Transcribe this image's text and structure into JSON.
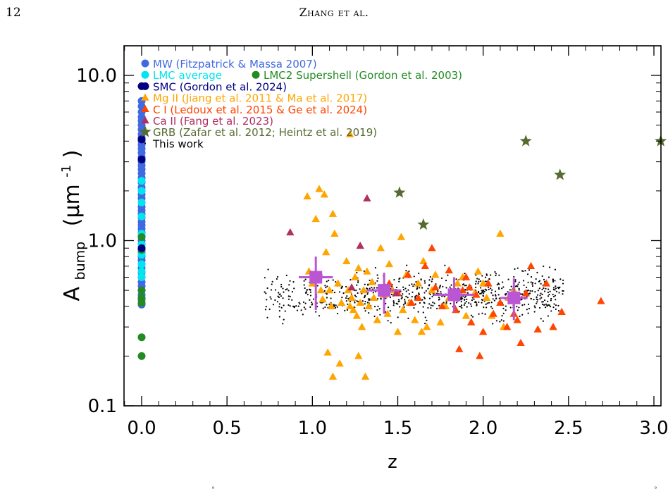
{
  "page": {
    "page_number": "12",
    "running_head": "Zhang et al.",
    "stray_marks": [
      "°",
      "°"
    ]
  },
  "chart_data": {
    "type": "scatter",
    "title": "",
    "xlabel": "z",
    "ylabel": "A",
    "ylabel_sub": "bump",
    "ylabel_units_open": "(μm",
    "ylabel_units_sup": "-1",
    "ylabel_units_close": ")",
    "xlim": [
      -0.1,
      3.05
    ],
    "ylim": [
      0.1,
      15
    ],
    "yscale": "log",
    "grid": false,
    "legend_placement": "top-left",
    "xticks": [
      {
        "value": 0.0,
        "label": "0.0"
      },
      {
        "value": 0.5,
        "label": "0.5"
      },
      {
        "value": 1.0,
        "label": "1.0"
      },
      {
        "value": 1.5,
        "label": "1.5"
      },
      {
        "value": 2.0,
        "label": "2.0"
      },
      {
        "value": 2.5,
        "label": "2.5"
      },
      {
        "value": 3.0,
        "label": "3.0"
      }
    ],
    "yticks": [
      {
        "value": 0.1,
        "label": "0.1"
      },
      {
        "value": 1.0,
        "label": "1.0"
      },
      {
        "value": 10.0,
        "label": "10.0"
      }
    ],
    "legend": [
      {
        "marker": "circle",
        "color": "#4169E1",
        "text": "MW (Fitzpatrick & Massa 2007)"
      },
      {
        "marker": "circle",
        "color": "#00E5EE",
        "text": "LMC average"
      },
      {
        "marker": "circle",
        "color": "#228B22",
        "text": "LMC2 Supershell (Gordon et al. 2003)",
        "inline_with_previous": true
      },
      {
        "marker": "circle",
        "color": "#000080",
        "text": "SMC (Gordon et al. 2024)"
      },
      {
        "marker": "triangle",
        "color": "#FFA500",
        "text": "Mg II (Jiang et al. 2011 & Ma et al. 2017)"
      },
      {
        "marker": "triangle",
        "color": "#FF4500",
        "text": "C I (Ledoux et al. 2015 & Ge et al. 2024)"
      },
      {
        "marker": "triangle",
        "color": "#B03060",
        "text": "Ca II (Fang et al. 2023)"
      },
      {
        "marker": "star",
        "color": "#556B2F",
        "text": "GRB (Zafar et al. 2012; Heintz et al. 2019)"
      },
      {
        "marker": "dot",
        "color": "#000000",
        "text": "This work"
      }
    ],
    "series": [
      {
        "name": "MW (Fitzpatrick & Massa 2007)",
        "marker": "circle",
        "color": "#4169E1",
        "x": [
          0,
          0,
          0,
          0,
          0,
          0,
          0,
          0,
          0,
          0,
          0,
          0,
          0,
          0,
          0,
          0,
          0,
          0,
          0,
          0,
          0,
          0,
          0,
          0,
          0,
          0,
          0,
          0,
          0,
          0,
          0,
          0,
          0,
          0,
          0,
          0,
          0,
          0,
          0,
          0,
          0,
          0,
          0,
          0,
          0,
          0,
          0,
          0,
          0,
          0
        ],
        "y": [
          7.0,
          6.5,
          6.0,
          5.6,
          5.3,
          5.0,
          4.7,
          4.4,
          4.2,
          4.0,
          3.8,
          3.6,
          3.4,
          3.2,
          3.0,
          2.85,
          2.7,
          2.55,
          2.4,
          2.25,
          2.1,
          2.0,
          1.9,
          1.8,
          1.7,
          1.6,
          1.52,
          1.45,
          1.38,
          1.3,
          1.24,
          1.18,
          1.12,
          1.06,
          1.0,
          0.95,
          0.9,
          0.85,
          0.8,
          0.76,
          0.72,
          0.68,
          0.64,
          0.6,
          0.56,
          0.53,
          0.5,
          0.47,
          0.44,
          0.41
        ]
      },
      {
        "name": "LMC average",
        "marker": "circle",
        "color": "#00E5EE",
        "x": [
          0,
          0,
          0,
          0,
          0,
          0,
          0,
          0,
          0,
          0
        ],
        "y": [
          2.3,
          2.0,
          1.7,
          1.4,
          1.1,
          0.95,
          0.82,
          0.72,
          0.65,
          0.6
        ]
      },
      {
        "name": "LMC2 Supershell (Gordon et al. 2003)",
        "marker": "circle",
        "color": "#228B22",
        "x": [
          0,
          0,
          0,
          0,
          0,
          0,
          0
        ],
        "y": [
          1.05,
          0.5,
          0.45,
          0.42,
          0.26,
          0.2,
          0.88
        ]
      },
      {
        "name": "SMC (Gordon et al. 2024)",
        "marker": "circle",
        "color": "#000080",
        "x": [
          0,
          0,
          0,
          0
        ],
        "y": [
          8.6,
          4.1,
          3.1,
          0.9
        ]
      },
      {
        "name": "Mg II (Jiang et al. 2011 & Ma et al. 2017)",
        "marker": "triangle",
        "color": "#FFA500",
        "x": [
          0.97,
          0.98,
          1.0,
          1.02,
          1.03,
          1.04,
          1.05,
          1.06,
          1.07,
          1.08,
          1.1,
          1.11,
          1.12,
          1.13,
          1.15,
          1.17,
          1.2,
          1.21,
          1.22,
          1.23,
          1.24,
          1.25,
          1.26,
          1.27,
          1.28,
          1.29,
          1.3,
          1.32,
          1.33,
          1.35,
          1.36,
          1.38,
          1.4,
          1.42,
          1.44,
          1.45,
          1.47,
          1.5,
          1.52,
          1.53,
          1.55,
          1.57,
          1.6,
          1.62,
          1.64,
          1.65,
          1.67,
          1.7,
          1.72,
          1.75,
          1.78,
          1.8,
          1.85,
          1.88,
          1.9,
          1.95,
          1.97,
          2.0,
          2.02,
          2.05,
          2.1,
          2.12,
          2.15,
          2.18,
          1.22,
          1.12,
          1.27,
          1.16,
          1.09,
          1.31
        ],
        "y": [
          1.85,
          0.65,
          0.55,
          1.35,
          0.6,
          2.05,
          0.5,
          0.44,
          1.9,
          0.85,
          0.5,
          0.4,
          1.45,
          1.1,
          0.55,
          0.42,
          0.75,
          0.5,
          0.4,
          0.45,
          0.38,
          0.6,
          0.35,
          0.68,
          0.42,
          0.3,
          0.5,
          0.65,
          0.4,
          0.56,
          0.45,
          0.33,
          0.9,
          0.47,
          0.36,
          0.72,
          0.5,
          0.28,
          1.05,
          0.38,
          0.62,
          0.42,
          0.33,
          0.55,
          0.28,
          0.75,
          0.3,
          0.5,
          0.62,
          0.32,
          0.4,
          0.45,
          0.55,
          0.6,
          0.35,
          0.48,
          0.65,
          0.55,
          0.45,
          0.35,
          1.1,
          0.3,
          0.45,
          0.5,
          4.4,
          0.15,
          0.2,
          0.18,
          0.21,
          0.15
        ]
      },
      {
        "name": "C I (Ledoux et al. 2015 & Ge et al. 2024)",
        "marker": "triangle",
        "color": "#FF4500",
        "x": [
          1.45,
          1.5,
          1.56,
          1.62,
          1.66,
          1.72,
          1.76,
          1.8,
          1.84,
          1.88,
          1.9,
          1.93,
          1.96,
          2.0,
          2.03,
          2.06,
          2.1,
          2.14,
          2.18,
          2.22,
          2.25,
          2.28,
          2.32,
          2.37,
          2.41,
          2.46,
          2.69,
          1.98,
          1.86,
          1.7,
          1.58,
          2.2,
          1.92
        ],
        "y": [
          0.55,
          0.48,
          0.62,
          0.45,
          0.7,
          0.52,
          0.4,
          0.66,
          0.38,
          0.5,
          0.6,
          0.32,
          0.47,
          0.28,
          0.55,
          0.36,
          0.42,
          0.3,
          0.36,
          0.24,
          0.48,
          0.7,
          0.29,
          0.55,
          0.3,
          0.37,
          0.43,
          0.2,
          0.22,
          0.9,
          0.42,
          0.33,
          0.52
        ]
      },
      {
        "name": "Ca II (Fang et al. 2023)",
        "marker": "triangle",
        "color": "#B03060",
        "x": [
          0.87,
          1.32,
          1.28,
          1.23,
          1.42,
          1.49
        ],
        "y": [
          1.12,
          1.8,
          0.93,
          0.52,
          0.5,
          0.48
        ]
      },
      {
        "name": "GRB (Zafar et al. 2012; Heintz et al. 2019)",
        "marker": "star",
        "color": "#556B2F",
        "x": [
          1.51,
          1.65,
          2.25,
          2.45,
          3.04
        ],
        "y": [
          1.95,
          1.25,
          4.0,
          2.5,
          4.0
        ]
      },
      {
        "name": "This work",
        "marker": "dot",
        "color": "#000000",
        "x": [],
        "y": [],
        "generated_points": 800
      },
      {
        "name": "",
        "marker": "square-errorbar",
        "color": "#BA55D3",
        "x": [
          1.02,
          1.42,
          1.83,
          2.18
        ],
        "y": [
          0.6,
          0.5,
          0.47,
          0.45
        ],
        "xerr": [
          0.1,
          0.1,
          0.12,
          0.08
        ],
        "yerr_low": [
          0.22,
          0.14,
          0.1,
          0.12
        ],
        "yerr_high": [
          0.2,
          0.14,
          0.13,
          0.14
        ]
      }
    ]
  }
}
